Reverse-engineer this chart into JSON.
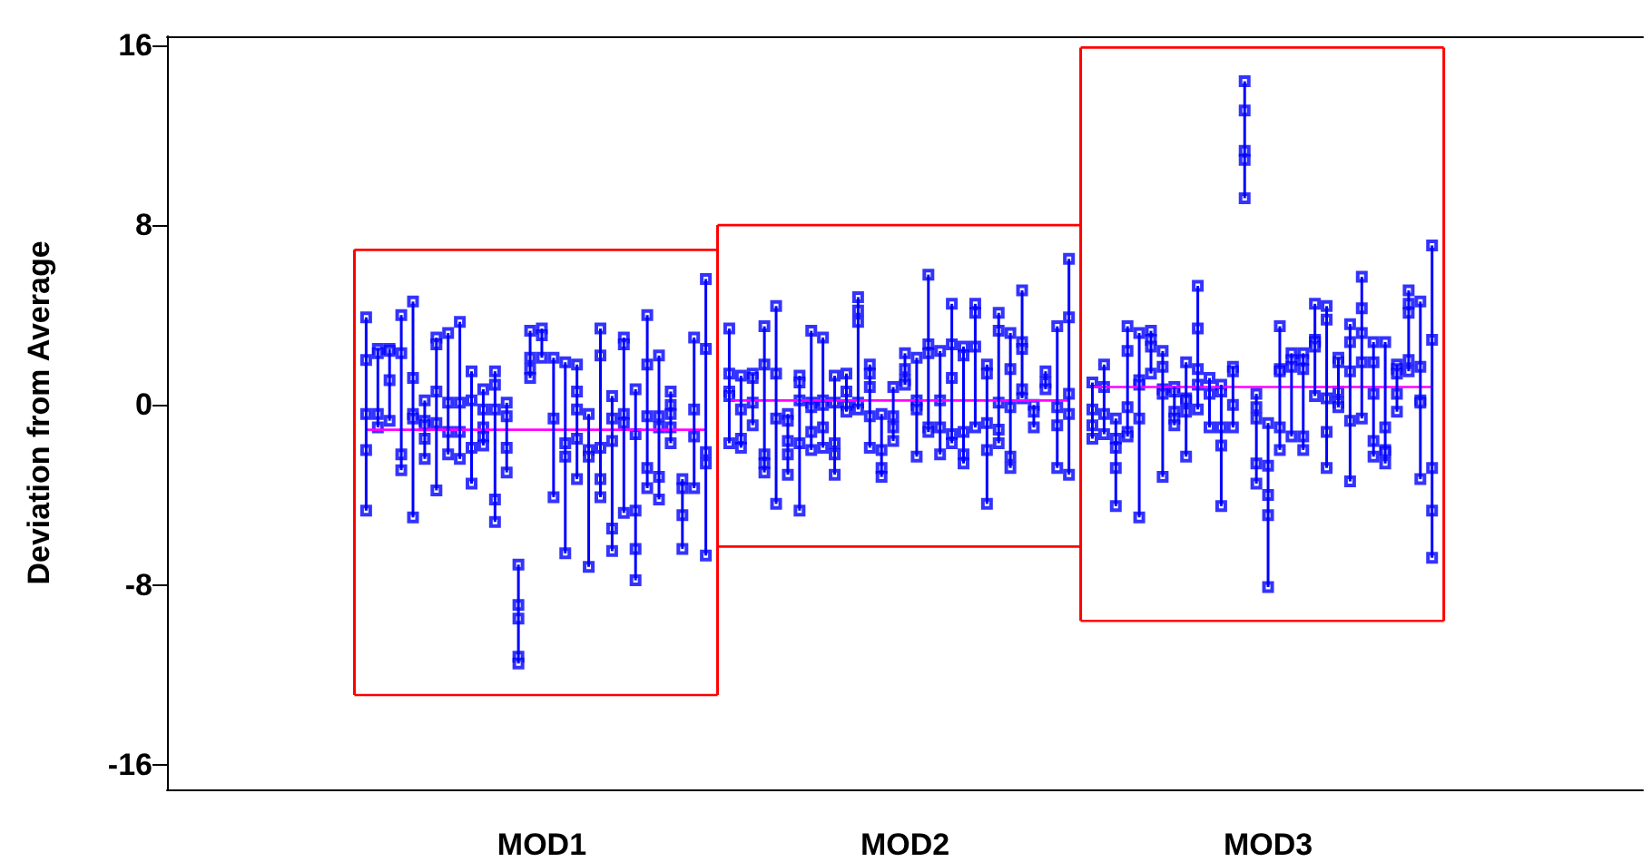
{
  "chart_data": {
    "type": "scatter",
    "ylabel": "Deviation from Average",
    "ylim": [
      -17.1,
      16.4
    ],
    "yticks": [
      -16,
      -8,
      0,
      8,
      16
    ],
    "grid": false,
    "marker": "square",
    "line_style": "solid",
    "categories": [
      null,
      null,
      null,
      null,
      null,
      null,
      null,
      null,
      null,
      null,
      null,
      null,
      null,
      null,
      null,
      null,
      null,
      null,
      null,
      null,
      null,
      null,
      null,
      null,
      null,
      null,
      null,
      null,
      null,
      null,
      null,
      null,
      "MOD1",
      null,
      null,
      null,
      null,
      null,
      null,
      null,
      null,
      null,
      null,
      null,
      null,
      null,
      null,
      null,
      null,
      null,
      null,
      null,
      null,
      null,
      null,
      null,
      null,
      null,
      null,
      null,
      null,
      null,
      null,
      "MOD2",
      null,
      null,
      null,
      null,
      null,
      null,
      null,
      null,
      null,
      null,
      null,
      null,
      null,
      null,
      null,
      null,
      null,
      null,
      null,
      null,
      null,
      null,
      null,
      null,
      null,
      null,
      null,
      null,
      null,
      null,
      "MOD3",
      null,
      null,
      null,
      null,
      null,
      null,
      null,
      null,
      null,
      null,
      null,
      null,
      null,
      null,
      null,
      null,
      null,
      null,
      null,
      null,
      null,
      null,
      null,
      null,
      null,
      null,
      null,
      null,
      null,
      null,
      null,
      null
    ],
    "series": [
      {
        "type": "line",
        "color": "#ff0000",
        "marker": "none",
        "values": [
          null,
          null,
          null,
          null,
          null,
          null,
          null,
          null,
          null,
          null,
          null,
          null,
          null,
          null,
          null,
          null,
          6.9,
          6.9,
          6.9,
          6.9,
          6.9,
          6.9,
          6.9,
          6.9,
          6.9,
          6.9,
          6.9,
          6.9,
          6.9,
          6.9,
          6.9,
          6.9,
          6.9,
          6.9,
          6.9,
          6.9,
          6.9,
          6.9,
          6.9,
          6.9,
          6.9,
          6.9,
          6.9,
          6.9,
          6.9,
          6.9,
          6.9,
          6.9,
          null,
          null,
          null,
          null,
          null,
          null,
          null,
          null,
          null,
          null,
          null,
          null,
          null,
          null,
          null,
          null,
          null,
          null,
          null,
          null,
          null,
          null,
          null,
          null,
          null,
          null,
          null,
          null,
          null,
          null,
          15.9,
          15.9,
          15.9,
          15.9,
          15.9,
          15.9,
          15.9,
          15.9,
          15.9,
          15.9,
          15.9,
          15.9,
          15.9,
          15.9,
          15.9,
          15.9,
          15.9,
          15.9,
          15.9,
          15.9,
          15.9,
          15.9,
          15.9,
          15.9,
          15.9,
          15.9,
          15.9,
          15.9,
          15.9,
          15.9,
          15.9,
          15.9,
          null,
          null,
          null,
          null,
          null,
          null,
          null,
          null,
          null,
          null,
          null,
          null,
          null,
          null,
          null,
          null,
          null
        ]
      },
      {
        "type": "line",
        "color": "#ff0000",
        "marker": "none",
        "values": [
          null,
          null,
          null,
          null,
          null,
          null,
          null,
          null,
          null,
          null,
          null,
          null,
          null,
          null,
          null,
          null,
          null,
          null,
          null,
          null,
          null,
          null,
          null,
          null,
          null,
          null,
          null,
          null,
          null,
          null,
          null,
          null,
          null,
          null,
          null,
          null,
          null,
          null,
          null,
          null,
          null,
          null,
          null,
          null,
          null,
          null,
          null,
          8.0,
          8.0,
          8.0,
          8.0,
          8.0,
          8.0,
          8.0,
          8.0,
          8.0,
          8.0,
          8.0,
          8.0,
          8.0,
          8.0,
          8.0,
          8.0,
          8.0,
          8.0,
          8.0,
          8.0,
          8.0,
          8.0,
          8.0,
          8.0,
          8.0,
          8.0,
          8.0,
          8.0,
          8.0,
          8.0,
          8.0,
          8.0,
          null,
          null,
          null,
          null,
          null,
          null,
          null,
          null,
          null,
          null,
          null,
          null,
          null,
          null,
          null,
          null,
          null,
          null,
          null,
          null,
          null,
          null,
          null,
          null,
          null,
          null,
          null,
          null,
          null,
          null,
          null,
          null,
          null,
          null,
          null,
          null,
          null,
          null,
          null,
          null,
          null,
          null,
          null,
          null,
          null,
          null,
          null,
          null
        ]
      },
      {
        "type": "line",
        "color": "#ff0000",
        "marker": "none",
        "values": [
          null,
          null,
          null,
          null,
          null,
          null,
          null,
          null,
          null,
          null,
          null,
          null,
          null,
          null,
          null,
          null,
          -12.9,
          -12.9,
          -12.9,
          -12.9,
          -12.9,
          -12.9,
          -12.9,
          -12.9,
          -12.9,
          -12.9,
          -12.9,
          -12.9,
          -12.9,
          -12.9,
          -12.9,
          -12.9,
          -12.9,
          -12.9,
          -12.9,
          -12.9,
          -12.9,
          -12.9,
          -12.9,
          -12.9,
          -12.9,
          -12.9,
          -12.9,
          -12.9,
          -12.9,
          -12.9,
          -12.9,
          -12.9,
          null,
          null,
          null,
          null,
          null,
          null,
          null,
          null,
          null,
          null,
          null,
          null,
          null,
          null,
          null,
          null,
          null,
          null,
          null,
          null,
          null,
          null,
          null,
          null,
          null,
          null,
          null,
          null,
          null,
          null,
          -9.6,
          -9.6,
          -9.6,
          -9.6,
          -9.6,
          -9.6,
          -9.6,
          -9.6,
          -9.6,
          -9.6,
          -9.6,
          -9.6,
          -9.6,
          -9.6,
          -9.6,
          -9.6,
          -9.6,
          -9.6,
          -9.6,
          -9.6,
          -9.6,
          -9.6,
          -9.6,
          -9.6,
          -9.6,
          -9.6,
          -9.6,
          -9.6,
          -9.6,
          -9.6,
          -9.6,
          -9.6,
          null,
          null,
          null,
          null,
          null,
          null,
          null,
          null,
          null,
          null,
          null,
          null,
          null,
          null,
          null,
          null,
          null
        ]
      },
      {
        "type": "line",
        "color": "#ff0000",
        "marker": "none",
        "values": [
          null,
          null,
          null,
          null,
          null,
          null,
          null,
          null,
          null,
          null,
          null,
          null,
          null,
          null,
          null,
          null,
          null,
          null,
          null,
          null,
          null,
          null,
          null,
          null,
          null,
          null,
          null,
          null,
          null,
          null,
          null,
          null,
          null,
          null,
          null,
          null,
          null,
          null,
          null,
          null,
          null,
          null,
          null,
          null,
          null,
          null,
          null,
          -6.3,
          -6.3,
          -6.3,
          -6.3,
          -6.3,
          -6.3,
          -6.3,
          -6.3,
          -6.3,
          -6.3,
          -6.3,
          -6.3,
          -6.3,
          -6.3,
          -6.3,
          -6.3,
          -6.3,
          -6.3,
          -6.3,
          -6.3,
          -6.3,
          -6.3,
          -6.3,
          -6.3,
          -6.3,
          -6.3,
          -6.3,
          -6.3,
          -6.3,
          -6.3,
          -6.3,
          -6.3,
          null,
          null,
          null,
          null,
          null,
          null,
          null,
          null,
          null,
          null,
          null,
          null,
          null,
          null,
          null,
          null,
          null,
          null,
          null,
          null,
          null,
          null,
          null,
          null,
          null,
          null,
          null,
          null,
          null,
          null,
          null,
          null,
          null,
          null,
          null,
          null,
          null,
          null,
          null,
          null,
          null,
          null,
          null,
          null,
          null,
          null,
          null,
          null
        ]
      },
      {
        "type": "bar",
        "color": "#ff0000",
        "base": [
          null,
          null,
          null,
          null,
          null,
          null,
          null,
          null,
          null,
          null,
          null,
          null,
          null,
          null,
          null,
          null,
          -12.9,
          null,
          null,
          null,
          null,
          null,
          null,
          null,
          null,
          null,
          null,
          null,
          null,
          null,
          null,
          null,
          null,
          null,
          null,
          null,
          null,
          null,
          null,
          null,
          null,
          null,
          null,
          null,
          null,
          null,
          null,
          -12.9,
          null,
          null,
          null,
          null,
          null,
          null,
          null,
          null,
          null,
          null,
          null,
          null,
          null,
          null,
          null,
          null,
          null,
          null,
          null,
          null,
          null,
          null,
          null,
          null,
          null,
          null,
          null,
          null,
          null,
          null,
          -9.6,
          null,
          null,
          null,
          null,
          null,
          null,
          null,
          null,
          null,
          null,
          null,
          null,
          null,
          null,
          null,
          null,
          null,
          null,
          null,
          null,
          null,
          null,
          null,
          null,
          null,
          null,
          null,
          null,
          null,
          null,
          -9.6,
          null,
          null,
          null,
          null,
          null,
          null,
          null,
          null,
          null,
          null,
          null,
          null,
          null,
          null,
          null,
          null,
          null
        ],
        "values": [
          null,
          null,
          null,
          null,
          null,
          null,
          null,
          null,
          null,
          null,
          null,
          null,
          null,
          null,
          null,
          null,
          19.8,
          null,
          null,
          null,
          null,
          null,
          null,
          null,
          null,
          null,
          null,
          null,
          null,
          null,
          null,
          null,
          null,
          null,
          null,
          null,
          null,
          null,
          null,
          null,
          null,
          null,
          null,
          null,
          null,
          null,
          null,
          20.9,
          null,
          null,
          null,
          null,
          null,
          null,
          null,
          null,
          null,
          null,
          null,
          null,
          null,
          null,
          null,
          null,
          null,
          null,
          null,
          null,
          null,
          null,
          null,
          null,
          null,
          null,
          null,
          null,
          null,
          null,
          25.5,
          null,
          null,
          null,
          null,
          null,
          null,
          null,
          null,
          null,
          null,
          null,
          null,
          null,
          null,
          null,
          null,
          null,
          null,
          null,
          null,
          null,
          null,
          null,
          null,
          null,
          null,
          null,
          null,
          null,
          null,
          25.5,
          null,
          null,
          null,
          null,
          null,
          null,
          null,
          null,
          null,
          null,
          null,
          null,
          null,
          null,
          null,
          null,
          null
        ]
      },
      {
        "type": "bar",
        "color": "#0000ff",
        "base": [
          null,
          null,
          null,
          null,
          null,
          null,
          null,
          null,
          null,
          null,
          null,
          null,
          null,
          null,
          null,
          null,
          null,
          -4.7,
          -1.0,
          -0.7,
          -2.9,
          -5.0,
          -2.4,
          -3.8,
          -2.2,
          -2.4,
          -3.5,
          -1.8,
          -5.2,
          -3.0,
          -11.5,
          1.2,
          2.1,
          -4.1,
          -6.6,
          -3.3,
          -7.2,
          -4.1,
          -6.5,
          -4.8,
          -7.8,
          -3.7,
          -4.2,
          -1.7,
          -6.4,
          -3.7,
          -6.7,
          null,
          -1.7,
          -1.9,
          -0.9,
          -3.0,
          -4.4,
          -3.1,
          -4.7,
          -2.0,
          -1.9,
          -3.1,
          -0.3,
          -0.2,
          -1.9,
          -3.2,
          -1.6,
          0.9,
          -2.3,
          -1.2,
          -2.2,
          -1.7,
          -2.6,
          -1.0,
          -4.4,
          -1.7,
          -2.8,
          0.3,
          -1.0,
          0.7,
          -2.8,
          -3.1,
          null,
          -1.5,
          -1.3,
          -4.5,
          -1.4,
          -5.0,
          1.4,
          -3.2,
          -0.9,
          -2.3,
          -0.2,
          -1.0,
          -4.5,
          -1.0,
          9.2,
          -3.5,
          -8.1,
          -2.0,
          -1.4,
          -2.0,
          0.4,
          -2.8,
          -0.1,
          -3.4,
          -0.6,
          -2.3,
          -2.6,
          -0.3,
          1.5,
          -3.3,
          -6.8,
          null,
          null,
          null,
          null,
          null,
          null,
          null,
          null,
          null,
          null,
          null,
          null,
          null,
          null,
          null,
          null,
          null,
          null
        ],
        "values": [
          null,
          null,
          null,
          null,
          null,
          null,
          null,
          null,
          null,
          null,
          null,
          null,
          null,
          null,
          null,
          null,
          null,
          8.6,
          3.5,
          3.2,
          6.9,
          9.6,
          2.6,
          6.8,
          5.4,
          6.1,
          5.0,
          2.5,
          6.7,
          3.1,
          4.4,
          2.1,
          1.3,
          6.2,
          8.5,
          5.1,
          6.8,
          7.5,
          6.9,
          7.8,
          8.5,
          7.7,
          6.4,
          2.3,
          3.1,
          6.7,
          12.3,
          null,
          5.1,
          3.2,
          2.3,
          6.5,
          8.8,
          2.7,
          6.0,
          5.3,
          4.9,
          4.4,
          1.7,
          5.0,
          3.7,
          2.8,
          2.4,
          1.4,
          4.4,
          7.0,
          4.6,
          6.2,
          5.2,
          5.5,
          6.2,
          5.8,
          6.0,
          4.8,
          1.0,
          0.8,
          6.3,
          9.6,
          null,
          2.5,
          3.1,
          3.9,
          4.9,
          8.2,
          1.9,
          5.6,
          1.7,
          4.2,
          5.5,
          2.2,
          5.4,
          2.7,
          5.2,
          4.0,
          7.3,
          5.5,
          3.7,
          4.3,
          4.1,
          7.2,
          2.2,
          7.0,
          6.3,
          5.1,
          5.4,
          2.1,
          3.6,
          7.9,
          13.9,
          null,
          null,
          null,
          null,
          null,
          null,
          null,
          null,
          null,
          null,
          null,
          null,
          null,
          null,
          null,
          null,
          null,
          null
        ]
      },
      {
        "color": "#0000ff",
        "values": [
          null,
          null,
          null,
          null,
          null,
          null,
          null,
          null,
          null,
          null,
          null,
          null,
          null,
          null,
          null,
          null,
          null,
          3.9,
          2.5,
          2.5,
          4.0,
          4.6,
          0.2,
          3.0,
          3.2,
          3.7,
          1.5,
          0.7,
          1.5,
          0.1,
          -7.1,
          3.3,
          3.4,
          2.1,
          1.9,
          1.8,
          -0.4,
          3.4,
          0.4,
          3.0,
          0.7,
          4.0,
          2.2,
          0.6,
          -3.3,
          3.0,
          5.6,
          null,
          3.4,
          1.3,
          1.4,
          3.5,
          4.4,
          -0.4,
          1.3,
          3.3,
          3.0,
          1.3,
          1.4,
          4.8,
          1.8,
          -0.4,
          0.8,
          2.3,
          2.1,
          5.8,
          2.4,
          4.5,
          2.6,
          4.5,
          1.8,
          4.1,
          3.2,
          5.1,
          0.0,
          1.5,
          3.5,
          6.5,
          null,
          1.0,
          1.8,
          -0.6,
          3.5,
          3.2,
          3.3,
          2.4,
          0.8,
          1.9,
          5.3,
          1.2,
          0.9,
          1.7,
          14.4,
          0.5,
          -0.8,
          3.5,
          2.3,
          2.3,
          4.5,
          4.4,
          2.1,
          3.6,
          5.7,
          2.8,
          2.8,
          1.8,
          5.1,
          4.6,
          7.1,
          null,
          null,
          null,
          null,
          null,
          null,
          null,
          null,
          null,
          null,
          null,
          null,
          null,
          null,
          null,
          null,
          null,
          null
        ]
      },
      {
        "color": "#0000ff",
        "values": [
          null,
          null,
          null,
          null,
          null,
          null,
          null,
          null,
          null,
          null,
          null,
          null,
          null,
          null,
          null,
          null,
          null,
          2.0,
          2.3,
          2.4,
          2.3,
          1.2,
          -0.7,
          2.7,
          0.1,
          0.1,
          0.2,
          -0.2,
          0.9,
          -0.5,
          -8.9,
          2.1,
          3.1,
          -0.6,
          -1.7,
          0.6,
          -2.0,
          2.2,
          -0.6,
          2.7,
          -1.3,
          1.8,
          -0.5,
          0.0,
          -3.7,
          -0.2,
          2.5,
          null,
          1.4,
          -0.2,
          1.2,
          1.8,
          1.4,
          -0.7,
          1.0,
          0.1,
          0.2,
          0.1,
          0.6,
          4.2,
          1.4,
          -2.0,
          -0.5,
          1.6,
          0.2,
          2.7,
          0.2,
          2.7,
          2.2,
          4.1,
          1.4,
          3.3,
          1.6,
          2.8,
          -0.3,
          1.0,
          -0.1,
          3.9,
          null,
          -0.2,
          0.8,
          -1.5,
          2.4,
          1.1,
          2.9,
          1.7,
          0.6,
          0.3,
          3.4,
          0.5,
          0.6,
          1.5,
          13.1,
          -0.1,
          -2.7,
          1.6,
          2.0,
          2.0,
          2.9,
          3.8,
          1.9,
          2.8,
          4.3,
          1.9,
          -1.0,
          1.6,
          4.5,
          1.7,
          2.9,
          null,
          null,
          null,
          null,
          null,
          null,
          null,
          null,
          null,
          null,
          null,
          null,
          null,
          null,
          null,
          null,
          null,
          null
        ]
      },
      {
        "color": "#0000ff",
        "values": [
          null,
          null,
          null,
          null,
          null,
          null,
          null,
          null,
          null,
          null,
          null,
          null,
          null,
          null,
          null,
          null,
          null,
          -0.4,
          -0.4,
          1.1,
          -2.2,
          -0.4,
          -0.9,
          0.6,
          -1.2,
          -1.2,
          -1.9,
          -1.0,
          -0.2,
          -1.9,
          -9.5,
          1.6,
          2.1,
          -4.1,
          -2.3,
          -0.2,
          -2.3,
          -1.9,
          -1.6,
          -0.4,
          -4.7,
          -0.5,
          -1.0,
          -0.4,
          -4.9,
          -1.4,
          -2.1,
          null,
          0.6,
          -1.5,
          0.1,
          -2.2,
          -0.6,
          -1.6,
          0.2,
          -0.1,
          0.0,
          -1.7,
          0.0,
          3.7,
          0.8,
          -2.8,
          -1.0,
          1.1,
          0.0,
          2.3,
          -1.0,
          1.2,
          -1.2,
          2.6,
          -0.8,
          0.1,
          -0.1,
          2.5,
          -1.0,
          0.7,
          -0.9,
          0.5,
          null,
          -0.9,
          -0.4,
          -1.9,
          -0.1,
          0.9,
          2.6,
          0.7,
          -0.3,
          0.2,
          1.6,
          -1.0,
          -1.0,
          0.0,
          11.3,
          -0.6,
          -4.0,
          1.5,
          1.7,
          1.6,
          2.8,
          0.3,
          0.6,
          1.5,
          3.2,
          0.5,
          -2.0,
          1.4,
          4.1,
          0.2,
          -2.8,
          null,
          null,
          null,
          null,
          null,
          null,
          null,
          null,
          null,
          null,
          null,
          null,
          null,
          null,
          null,
          null,
          null,
          null
        ]
      },
      {
        "color": "#0000ff",
        "values": [
          null,
          null,
          null,
          null,
          null,
          null,
          null,
          null,
          null,
          null,
          null,
          null,
          null,
          null,
          null,
          null,
          null,
          -2.0,
          -1.0,
          -0.7,
          -2.9,
          -0.6,
          -1.5,
          -0.8,
          -2.2,
          -2.4,
          -3.5,
          -1.4,
          -4.2,
          -3.0,
          -11.2,
          1.2,
          null,
          null,
          -6.6,
          -1.5,
          -7.2,
          -3.3,
          -5.5,
          -0.8,
          -6.4,
          -2.8,
          -3.2,
          -1.0,
          -6.4,
          -3.7,
          -2.6,
          null,
          0.4,
          -1.9,
          -0.9,
          -2.6,
          -4.4,
          -2.2,
          -1.7,
          -1.2,
          -1.0,
          -2.2,
          -0.3,
          0.1,
          -0.5,
          -3.2,
          -1.6,
          0.9,
          -0.2,
          -1.0,
          -2.2,
          -1.3,
          -2.2,
          -1.0,
          -2.0,
          -1.1,
          -2.3,
          0.7,
          null,
          null,
          -2.8,
          -0.4,
          null,
          -1.5,
          -1.3,
          -2.8,
          -1.2,
          -0.6,
          1.4,
          0.5,
          -0.6,
          -0.3,
          0.9,
          null,
          -1.8,
          -1.0,
          10.9,
          -2.6,
          -4.9,
          -1.0,
          -1.4,
          -1.4,
          2.6,
          -1.2,
          0.1,
          -0.7,
          1.9,
          -1.6,
          -2.1,
          0.5,
          2.0,
          0.1,
          -4.7,
          null,
          null,
          null,
          null,
          null,
          null,
          null,
          null,
          null,
          null,
          null,
          null,
          null,
          null,
          null,
          null,
          null,
          null
        ]
      },
      {
        "color": "#0000ff",
        "values": [
          null,
          null,
          null,
          null,
          null,
          null,
          null,
          null,
          null,
          null,
          null,
          null,
          null,
          null,
          null,
          null,
          null,
          -4.7,
          null,
          null,
          null,
          -5.0,
          -2.4,
          -3.8,
          null,
          null,
          null,
          -1.8,
          -5.2,
          null,
          -11.5,
          null,
          null,
          null,
          null,
          -3.3,
          null,
          -4.1,
          -6.5,
          -4.8,
          -7.8,
          -3.7,
          -4.2,
          -1.7,
          null,
          null,
          -6.7,
          null,
          -1.7,
          null,
          null,
          -3.0,
          null,
          -3.1,
          -4.7,
          -2.0,
          -1.9,
          -3.1,
          null,
          -0.2,
          -1.9,
          null,
          null,
          null,
          -2.3,
          -1.2,
          null,
          -1.7,
          -2.6,
          null,
          -4.4,
          -1.7,
          -2.8,
          0.3,
          null,
          null,
          null,
          -3.1,
          null,
          null,
          null,
          -4.5,
          -1.4,
          -5.0,
          null,
          -3.2,
          -0.9,
          -2.3,
          -0.2,
          null,
          -4.5,
          null,
          9.2,
          -3.5,
          -8.1,
          -2.0,
          null,
          -2.0,
          0.4,
          -2.8,
          -0.1,
          -3.4,
          -0.6,
          -2.3,
          -2.6,
          -0.3,
          1.5,
          -3.3,
          -6.8,
          null,
          null,
          null,
          null,
          null,
          null,
          null,
          null,
          null,
          null,
          null,
          null,
          null,
          null,
          null,
          null,
          null,
          null
        ]
      },
      {
        "type": "line",
        "color": "#ff00ff",
        "marker": "none",
        "values": [
          null,
          null,
          null,
          null,
          null,
          null,
          null,
          null,
          null,
          null,
          null,
          null,
          null,
          null,
          null,
          null,
          null,
          -1.1,
          -1.1,
          -1.1,
          -1.1,
          -1.1,
          -1.1,
          -1.1,
          -1.1,
          -1.1,
          -1.1,
          -1.1,
          -1.1,
          -1.1,
          -1.1,
          -1.1,
          -1.1,
          -1.1,
          -1.1,
          -1.1,
          -1.1,
          -1.1,
          -1.1,
          -1.1,
          -1.1,
          -1.1,
          -1.1,
          -1.1,
          -1.1,
          -1.1,
          -1.1,
          null,
          0.2,
          0.2,
          0.2,
          0.2,
          0.2,
          0.2,
          0.2,
          0.2,
          0.2,
          0.2,
          0.2,
          0.2,
          0.2,
          0.2,
          0.2,
          0.2,
          0.2,
          0.2,
          0.2,
          0.2,
          0.2,
          0.2,
          0.2,
          0.2,
          0.2,
          0.2,
          0.2,
          0.2,
          0.2,
          0.2,
          null,
          0.8,
          0.8,
          0.8,
          0.8,
          0.8,
          0.8,
          0.8,
          0.8,
          0.8,
          0.8,
          0.8,
          0.8,
          0.8,
          0.8,
          0.8,
          0.8,
          0.8,
          0.8,
          0.8,
          0.8,
          0.8,
          0.8,
          0.8,
          0.8,
          0.8,
          0.8,
          0.8,
          0.8,
          0.8,
          0.8,
          null,
          null,
          null,
          null,
          null,
          null,
          null,
          null,
          null,
          null,
          null,
          null,
          null,
          null,
          null,
          null,
          null,
          null
        ]
      }
    ]
  }
}
